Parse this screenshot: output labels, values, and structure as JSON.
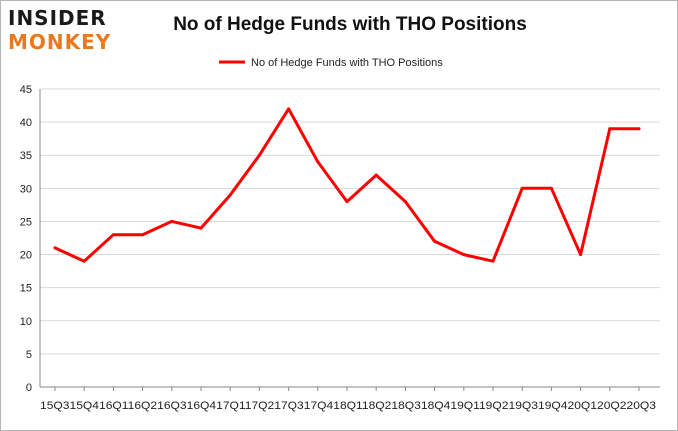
{
  "logo": {
    "line1": "INSIDER",
    "line2": "MONKEY"
  },
  "colors": {
    "line": "#ff0000",
    "grid": "#d9d9d9",
    "axis": "#888888",
    "text": "#222222"
  },
  "chart_data": {
    "type": "line",
    "title": "No of Hedge Funds with THO Positions",
    "legend_position": "top",
    "grid": true,
    "ylim": [
      0,
      45
    ],
    "yticks": [
      0,
      5,
      10,
      15,
      20,
      25,
      30,
      35,
      40,
      45
    ],
    "categories": [
      "2015Q3",
      "2015Q4",
      "2016Q1",
      "2016Q2",
      "2016Q3",
      "2016Q4",
      "2017Q1",
      "2017Q2",
      "2017Q3",
      "2017Q4",
      "2018Q1",
      "2018Q2",
      "2018Q3",
      "2018Q4",
      "2019Q1",
      "2019Q2",
      "2019Q3",
      "2019Q4",
      "2020Q1",
      "2020Q2",
      "2020Q3"
    ],
    "xtick_text": "15Q315Q416Q116Q216Q316Q417Q117Q217Q317Q418Q118Q218Q318Q419Q119Q219Q319Q420Q120Q220Q3",
    "series": [
      {
        "name": "No of Hedge Funds with THO Positions",
        "values": [
          21,
          19,
          23,
          23,
          25,
          24,
          29,
          35,
          42,
          34,
          28,
          32,
          28,
          22,
          20,
          19,
          30,
          30,
          20,
          39,
          39
        ]
      }
    ]
  }
}
